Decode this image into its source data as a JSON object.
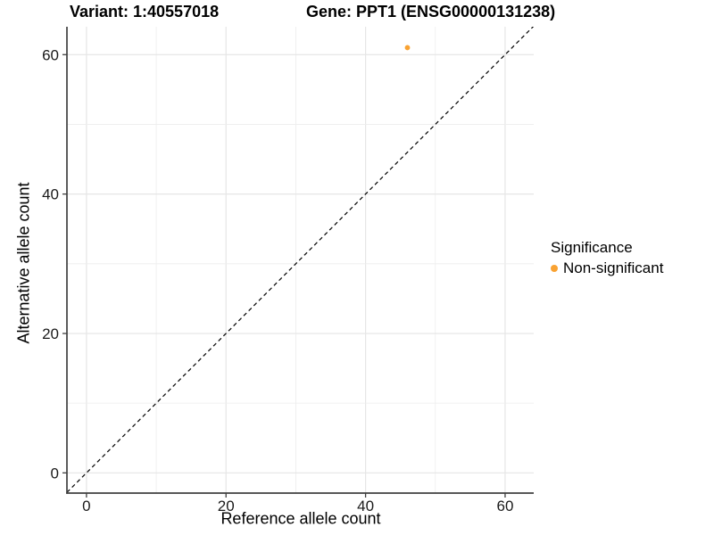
{
  "titles": {
    "variant": "Variant: 1:40557018",
    "gene": "Gene: PPT1 (ENSG00000131238)"
  },
  "legend": {
    "title": "Significance",
    "items": [
      {
        "label": "Non-significant",
        "color": "#F9A232"
      }
    ]
  },
  "chart_data": {
    "type": "scatter",
    "title": "Variant: 1:40557018 / Gene: PPT1 (ENSG00000131238)",
    "xlabel": "Reference allele count",
    "ylabel": "Alternative allele count",
    "xlim": [
      -2.8,
      64.1
    ],
    "ylim": [
      -2.9,
      64.0
    ],
    "x_ticks": [
      0,
      20,
      40,
      60
    ],
    "y_ticks": [
      0,
      20,
      40,
      60
    ],
    "x_gridlines": [
      0,
      10,
      20,
      30,
      40,
      50,
      60
    ],
    "y_gridlines": [
      0,
      10,
      20,
      30,
      40,
      50,
      60
    ],
    "grid": true,
    "legend_position": "right",
    "background": "#FFFFFF",
    "series": [
      {
        "name": "Non-significant",
        "color": "#F9A232",
        "points": [
          {
            "x": 46,
            "y": 61
          }
        ]
      }
    ],
    "reference_line": {
      "type": "identity",
      "slope": 1,
      "intercept": 0,
      "style": "dashed",
      "color": "#000000"
    },
    "colors": {
      "grid_major": "#E6E6E6",
      "grid_minor": "#EDEDED",
      "axis_line": "#3F3F3F",
      "tick_text": "#1A1A1A"
    }
  }
}
